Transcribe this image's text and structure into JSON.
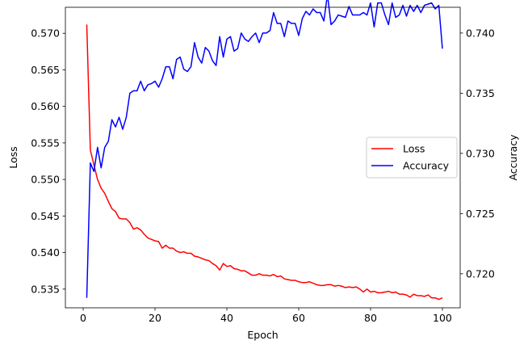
{
  "chart_data": {
    "type": "line",
    "xlabel": "Epoch",
    "ylabel_left": "Loss",
    "ylabel_right": "Accuracy",
    "xlim": [
      -4.95,
      104.95
    ],
    "ylim_left": [
      0.53244,
      0.57356
    ],
    "ylim_right": [
      0.71717,
      0.74214
    ],
    "xticks": [
      0,
      20,
      40,
      60,
      80,
      100
    ],
    "xtick_labels": [
      "0",
      "20",
      "40",
      "60",
      "80",
      "100"
    ],
    "yticks_left": [
      0.535,
      0.54,
      0.545,
      0.55,
      0.555,
      0.56,
      0.565,
      0.57
    ],
    "ytick_labels_left": [
      "0.535",
      "0.540",
      "0.545",
      "0.550",
      "0.555",
      "0.560",
      "0.565",
      "0.570"
    ],
    "yticks_right": [
      0.72,
      0.725,
      0.73,
      0.735,
      0.74
    ],
    "ytick_labels_right": [
      "0.720",
      "0.725",
      "0.730",
      "0.735",
      "0.740"
    ],
    "grid": false,
    "legend_position": "center-right",
    "colors": {
      "Loss": "#ff0000",
      "Accuracy": "#0000ff"
    },
    "series": [
      {
        "name": "Loss",
        "axis": "left",
        "x": [
          1,
          2,
          3,
          4,
          5,
          6,
          7,
          8,
          9,
          10,
          11,
          12,
          13,
          14,
          15,
          16,
          17,
          18,
          19,
          20,
          21,
          22,
          23,
          24,
          25,
          26,
          27,
          28,
          29,
          30,
          31,
          32,
          33,
          34,
          35,
          36,
          37,
          38,
          39,
          40,
          41,
          42,
          43,
          44,
          45,
          46,
          47,
          48,
          49,
          50,
          51,
          52,
          53,
          54,
          55,
          56,
          57,
          58,
          59,
          60,
          61,
          62,
          63,
          64,
          65,
          66,
          67,
          68,
          69,
          70,
          71,
          72,
          73,
          74,
          75,
          76,
          77,
          78,
          79,
          80,
          81,
          82,
          83,
          84,
          85,
          86,
          87,
          88,
          89,
          90,
          91,
          92,
          93,
          94,
          95,
          96,
          97,
          98,
          99,
          100
        ],
        "values": [
          0.5712,
          0.554,
          0.552,
          0.55,
          0.5488,
          0.5481,
          0.547,
          0.546,
          0.5456,
          0.5447,
          0.5446,
          0.5446,
          0.5441,
          0.5432,
          0.5434,
          0.5431,
          0.5425,
          0.542,
          0.5418,
          0.5416,
          0.5415,
          0.5406,
          0.541,
          0.5406,
          0.5406,
          0.5402,
          0.54,
          0.5401,
          0.5399,
          0.5399,
          0.5395,
          0.5394,
          0.5392,
          0.539,
          0.5389,
          0.5385,
          0.5382,
          0.5376,
          0.5385,
          0.5381,
          0.5382,
          0.5378,
          0.5377,
          0.5375,
          0.5375,
          0.5372,
          0.5369,
          0.5369,
          0.5371,
          0.5369,
          0.5369,
          0.5368,
          0.537,
          0.5367,
          0.5368,
          0.5364,
          0.5363,
          0.5362,
          0.5362,
          0.536,
          0.5359,
          0.5359,
          0.536,
          0.5358,
          0.5356,
          0.5355,
          0.5355,
          0.5356,
          0.5356,
          0.5354,
          0.5355,
          0.5354,
          0.5352,
          0.5353,
          0.5352,
          0.5353,
          0.535,
          0.5346,
          0.535,
          0.5346,
          0.5347,
          0.5345,
          0.5345,
          0.5346,
          0.5347,
          0.5345,
          0.5346,
          0.5343,
          0.5343,
          0.5342,
          0.5339,
          0.5343,
          0.5341,
          0.5341,
          0.534,
          0.5342,
          0.5338,
          0.5338,
          0.5336,
          0.5338
        ]
      },
      {
        "name": "Accuracy",
        "axis": "right",
        "x": [
          1,
          2,
          3,
          4,
          5,
          6,
          7,
          8,
          9,
          10,
          11,
          12,
          13,
          14,
          15,
          16,
          17,
          18,
          19,
          20,
          21,
          22,
          23,
          24,
          25,
          26,
          27,
          28,
          29,
          30,
          31,
          32,
          33,
          34,
          35,
          36,
          37,
          38,
          39,
          40,
          41,
          42,
          43,
          44,
          45,
          46,
          47,
          48,
          49,
          50,
          51,
          52,
          53,
          54,
          55,
          56,
          57,
          58,
          59,
          60,
          61,
          62,
          63,
          64,
          65,
          66,
          67,
          68,
          69,
          70,
          71,
          72,
          73,
          74,
          75,
          76,
          77,
          78,
          79,
          80,
          81,
          82,
          83,
          84,
          85,
          86,
          87,
          88,
          89,
          90,
          91,
          92,
          93,
          94,
          95,
          96,
          97,
          98,
          99,
          100
        ],
        "values": [
          0.718,
          0.7292,
          0.7285,
          0.7305,
          0.7288,
          0.7305,
          0.731,
          0.7328,
          0.7322,
          0.733,
          0.732,
          0.733,
          0.735,
          0.7352,
          0.7352,
          0.736,
          0.7352,
          0.7357,
          0.7358,
          0.736,
          0.7355,
          0.7362,
          0.7372,
          0.7372,
          0.7362,
          0.7378,
          0.738,
          0.737,
          0.7368,
          0.7372,
          0.7392,
          0.738,
          0.7375,
          0.7388,
          0.7385,
          0.7377,
          0.7373,
          0.7397,
          0.738,
          0.7395,
          0.7397,
          0.7385,
          0.7387,
          0.74,
          0.7395,
          0.7393,
          0.7397,
          0.74,
          0.7392,
          0.74,
          0.74,
          0.7402,
          0.7417,
          0.7408,
          0.7408,
          0.7397,
          0.741,
          0.7408,
          0.7408,
          0.7398,
          0.7412,
          0.7418,
          0.7415,
          0.742,
          0.7417,
          0.7417,
          0.741,
          0.7432,
          0.7407,
          0.741,
          0.7415,
          0.7414,
          0.7413,
          0.7422,
          0.7415,
          0.7415,
          0.7415,
          0.7417,
          0.7415,
          0.7425,
          0.7405,
          0.7425,
          0.7425,
          0.7415,
          0.7407,
          0.7425,
          0.7413,
          0.7415,
          0.7423,
          0.7414,
          0.7423,
          0.7418,
          0.7423,
          0.7417,
          0.7423,
          0.7424,
          0.7425,
          0.742,
          0.7423,
          0.7387
        ]
      }
    ]
  }
}
